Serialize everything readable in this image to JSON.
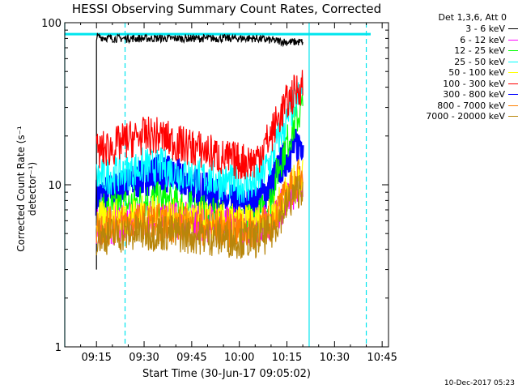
{
  "chart_data": {
    "type": "line",
    "title": "HESSI Observing Summary Count Rates, Corrected",
    "xlabel": "Start Time (30-Jun-17 09:05:02)",
    "ylabel": "Corrected Count Rate (s⁻¹ detector⁻¹)",
    "yscale": "log",
    "ylim": [
      1,
      100
    ],
    "xlim": [
      "09:05",
      "10:47"
    ],
    "x_ticks": [
      "09:15",
      "09:30",
      "09:45",
      "10:00",
      "10:15",
      "10:30",
      "10:45"
    ],
    "y_ticks": [
      "1",
      "10",
      "100"
    ],
    "legend_title": "Det 1,3,6, Att 0",
    "legend_position": "right",
    "timestamp": "10-Dec-2017 05:23",
    "markers": {
      "solid_cyan": [
        "09:05",
        "10:22"
      ],
      "dashed_cyan": [
        "09:24",
        "10:40"
      ],
      "horizontal_cyan_level": 85
    },
    "x_minutes": [
      15,
      20,
      25,
      30,
      35,
      40,
      45,
      50,
      55,
      60,
      65,
      70,
      75,
      80
    ],
    "series": [
      {
        "label": "3 - 6 keV",
        "color": "#000000",
        "values": [
          82,
          80,
          80,
          80,
          80,
          80,
          80,
          80,
          80,
          80,
          80,
          78,
          76,
          76
        ]
      },
      {
        "label": "6 - 12 keV",
        "color": "#ff00ff",
        "values": [
          5.5,
          5.6,
          6.0,
          6.2,
          6.3,
          6.0,
          6.0,
          5.8,
          5.7,
          5.5,
          5.5,
          6.0,
          8.0,
          10.5
        ]
      },
      {
        "label": "12 - 25 keV",
        "color": "#00ff00",
        "values": [
          6.5,
          7.0,
          7.5,
          8.0,
          8.0,
          7.5,
          7.0,
          6.5,
          6.0,
          5.8,
          5.8,
          8.0,
          18,
          30
        ]
      },
      {
        "label": "25 - 50 keV",
        "color": "#00ffff",
        "values": [
          11,
          11.5,
          12,
          13,
          13,
          12,
          11.5,
          11,
          10.5,
          10,
          10,
          14,
          25,
          38
        ]
      },
      {
        "label": "50 - 100 keV",
        "color": "#ffff00",
        "values": [
          6,
          6.2,
          6.5,
          6.6,
          6.5,
          6.3,
          6.1,
          6.0,
          5.9,
          5.8,
          5.8,
          6.3,
          9.0,
          11.5
        ]
      },
      {
        "label": "100 - 300 keV",
        "color": "#ff0000",
        "values": [
          16,
          17,
          19,
          20,
          20,
          18,
          17,
          16,
          14.5,
          14,
          14,
          20,
          32,
          42
        ]
      },
      {
        "label": "300 - 800 keV",
        "color": "#0000ff",
        "values": [
          8.5,
          9.0,
          10,
          11,
          12,
          11,
          10,
          9.0,
          7.8,
          7.5,
          7.5,
          10,
          15,
          19
        ]
      },
      {
        "label": "800 - 7000 keV",
        "color": "#ff8000",
        "values": [
          5.5,
          5.6,
          5.8,
          5.9,
          5.9,
          5.7,
          5.6,
          5.5,
          5.4,
          5.3,
          5.3,
          5.8,
          8.5,
          12
        ]
      },
      {
        "label": "7000 - 20000 keV",
        "color": "#b8860b",
        "values": [
          4.8,
          4.9,
          5.0,
          5.1,
          5.1,
          5.0,
          4.9,
          4.8,
          4.7,
          4.6,
          4.6,
          5.0,
          7.5,
          10
        ]
      }
    ]
  }
}
